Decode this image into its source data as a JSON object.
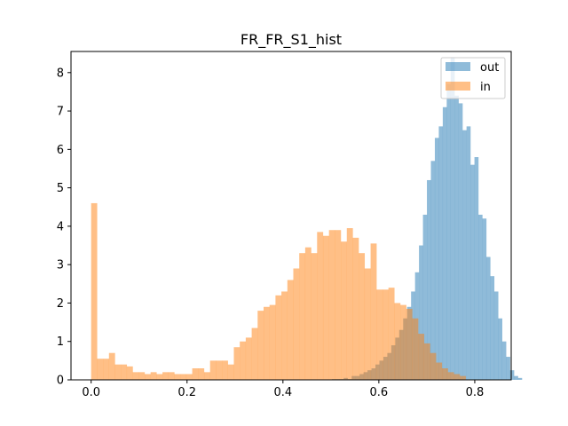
{
  "chart_data": {
    "type": "histogram",
    "title": "FR_FR_S1_hist",
    "xlabel": "",
    "ylabel": "",
    "xlim": [
      -0.042,
      0.876
    ],
    "ylim": [
      0,
      8.55
    ],
    "xticks": [
      0.0,
      0.2,
      0.4,
      0.6,
      0.8
    ],
    "xtick_labels": [
      "0.0",
      "0.2",
      "0.4",
      "0.6",
      "0.8"
    ],
    "yticks": [
      0,
      1,
      2,
      3,
      4,
      5,
      6,
      7,
      8
    ],
    "ytick_labels": [
      "0",
      "1",
      "2",
      "3",
      "4",
      "5",
      "6",
      "7",
      "8"
    ],
    "grid": false,
    "legend_position": "top-right",
    "series": [
      {
        "name": "out",
        "color": "#1f77b4",
        "alpha": 0.5,
        "bin_start": 0.502,
        "bin_width": 0.00826,
        "values": [
          0.02,
          0.02,
          0.02,
          0.05,
          0.02,
          0.1,
          0.1,
          0.15,
          0.2,
          0.25,
          0.3,
          0.4,
          0.5,
          0.6,
          0.7,
          0.9,
          1.1,
          1.3,
          1.6,
          1.9,
          2.3,
          2.8,
          3.5,
          4.3,
          5.2,
          5.7,
          6.3,
          6.6,
          7.1,
          7.7,
          8.4,
          7.4,
          7.2,
          6.5,
          6.6,
          5.6,
          5.8,
          4.3,
          4.2,
          3.2,
          2.7,
          2.3,
          1.6,
          1.0,
          0.6,
          0.25,
          0.1,
          0.05
        ]
      },
      {
        "name": "in",
        "color": "#ff7f0e",
        "alpha": 0.5,
        "bin_start": 0.0,
        "bin_width": 0.0124,
        "values": [
          4.6,
          0.55,
          0.55,
          0.7,
          0.4,
          0.4,
          0.35,
          0.2,
          0.2,
          0.15,
          0.2,
          0.15,
          0.2,
          0.2,
          0.15,
          0.15,
          0.15,
          0.3,
          0.3,
          0.2,
          0.5,
          0.5,
          0.5,
          0.4,
          0.85,
          1.0,
          1.1,
          1.35,
          1.8,
          1.9,
          1.95,
          2.2,
          2.3,
          2.6,
          2.9,
          3.3,
          3.45,
          3.3,
          3.85,
          3.75,
          3.9,
          3.9,
          3.6,
          3.95,
          3.7,
          3.3,
          2.9,
          3.55,
          2.35,
          2.35,
          2.4,
          2.0,
          1.95,
          1.85,
          1.6,
          1.2,
          0.95,
          0.7,
          0.45,
          0.3,
          0.2,
          0.15,
          0.1
        ]
      }
    ]
  }
}
